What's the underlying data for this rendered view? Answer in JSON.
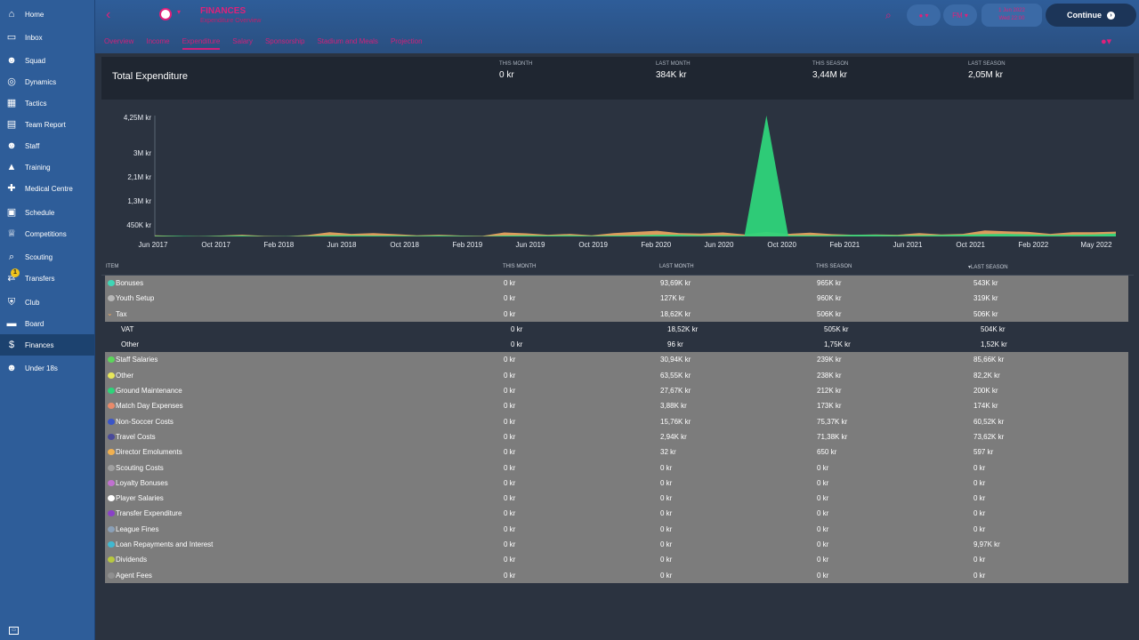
{
  "nav": [
    {
      "label": "Home",
      "icon": "home-icon"
    },
    {
      "label": "Inbox",
      "icon": "inbox-icon"
    },
    {
      "label": "Squad",
      "icon": "squad-icon"
    },
    {
      "label": "Dynamics",
      "icon": "dynamics-icon"
    },
    {
      "label": "Tactics",
      "icon": "tactics-icon"
    },
    {
      "label": "Team Report",
      "icon": "team-report-icon"
    },
    {
      "label": "Staff",
      "icon": "staff-icon"
    },
    {
      "label": "Training",
      "icon": "training-icon"
    },
    {
      "label": "Medical Centre",
      "icon": "medical-icon"
    },
    {
      "label": "Schedule",
      "icon": "schedule-icon"
    },
    {
      "label": "Competitions",
      "icon": "trophy-icon"
    },
    {
      "label": "Scouting",
      "icon": "scouting-icon"
    },
    {
      "label": "Transfers",
      "icon": "transfers-icon",
      "badge": "1"
    },
    {
      "label": "Club",
      "icon": "club-icon"
    },
    {
      "label": "Board",
      "icon": "board-icon"
    },
    {
      "label": "Finances",
      "icon": "finances-icon",
      "active": true
    },
    {
      "label": "Under 18s",
      "icon": "under18s-icon"
    }
  ],
  "header": {
    "back_icon": "chevron-left-icon",
    "title": "FINANCES",
    "subtitle": "Expenditure Overview",
    "tabs": [
      "Overview",
      "Income",
      "Expenditure",
      "Salary",
      "Sponsorship",
      "Stadium and Meals",
      "Projection"
    ],
    "active_tab": "Expenditure",
    "pill_left": "●",
    "pill_right": "FM",
    "date_line1": "1 Jun 2022",
    "date_line2": "Wed 22:00",
    "continue_label": "Continue",
    "accent": "#e0207a"
  },
  "summary": {
    "title": "Total Expenditure",
    "cols": [
      {
        "label": "THIS MONTH",
        "value": "0 kr"
      },
      {
        "label": "LAST MONTH",
        "value": "384K kr"
      },
      {
        "label": "THIS SEASON",
        "value": "3,44M kr"
      },
      {
        "label": "LAST SEASON",
        "value": "2,05M kr"
      }
    ]
  },
  "chart_data": {
    "type": "area",
    "y_ticks": [
      "4,25M kr",
      "3M kr",
      "2,1M kr",
      "1,3M kr",
      "450K kr"
    ],
    "x_ticks": [
      "Jun 2017",
      "Oct 2017",
      "Feb 2018",
      "Jun 2018",
      "Oct 2018",
      "Feb 2019",
      "Jun 2019",
      "Oct 2019",
      "Feb 2020",
      "Jun 2020",
      "Oct 2020",
      "Feb 2021",
      "Jun 2021",
      "Oct 2021",
      "Feb 2022",
      "May 2022"
    ],
    "ylim": [
      0,
      4250000
    ],
    "series": [
      {
        "color": "#f0a860",
        "values": [
          40,
          20,
          10,
          30,
          60,
          20,
          10,
          50,
          150,
          90,
          120,
          80,
          40,
          60,
          30,
          20,
          140,
          110,
          60,
          90,
          40,
          120,
          160,
          200,
          120,
          100,
          140,
          70,
          160,
          90,
          130,
          80,
          60,
          70,
          60,
          120,
          70,
          90,
          210,
          180,
          160,
          90,
          150,
          150,
          170
        ]
      },
      {
        "color": "#2ed47a",
        "peak_index": 28,
        "peak": 4250000,
        "values": [
          20,
          20,
          10,
          20,
          30,
          10,
          10,
          20,
          40,
          40,
          30,
          30,
          20,
          30,
          20,
          10,
          30,
          40,
          30,
          40,
          20,
          30,
          40,
          60,
          60,
          40,
          40,
          30,
          4250000,
          40,
          40,
          40,
          60,
          60,
          40,
          40,
          50,
          60,
          80,
          90,
          70,
          50,
          60,
          70,
          100
        ]
      }
    ],
    "grid": false,
    "legend": "none"
  },
  "table": {
    "headers": [
      "ITEM",
      "THIS MONTH",
      "LAST MONTH",
      "THIS SEASON",
      "LAST SEASON"
    ],
    "sort_column": "LAST SEASON",
    "rows": [
      {
        "item": "Bonuses",
        "color": "#3fd6b6",
        "m": "0 kr",
        "lm": "93,69K kr",
        "ts": "965K kr",
        "ls": "543K kr"
      },
      {
        "item": "Youth Setup",
        "color": "#b7b7b7",
        "m": "0 kr",
        "lm": "127K kr",
        "ts": "960K kr",
        "ls": "319K kr"
      },
      {
        "item": "Tax",
        "expand": "v",
        "color": "#f0a860",
        "m": "0 kr",
        "lm": "18,62K kr",
        "ts": "506K kr",
        "ls": "506K kr"
      },
      {
        "item": "VAT",
        "sub": true,
        "m": "0 kr",
        "lm": "18,52K kr",
        "ts": "505K kr",
        "ls": "504K kr"
      },
      {
        "item": "Other",
        "sub": true,
        "m": "0 kr",
        "lm": "96 kr",
        "ts": "1,75K kr",
        "ls": "1,52K kr"
      },
      {
        "item": "Staff Salaries",
        "color": "#5bd65b",
        "m": "0 kr",
        "lm": "30,94K kr",
        "ts": "239K kr",
        "ls": "85,66K kr"
      },
      {
        "item": "Other",
        "color": "#e6e65a",
        "m": "0 kr",
        "lm": "63,55K kr",
        "ts": "238K kr",
        "ls": "82,2K kr"
      },
      {
        "item": "Ground Maintenance",
        "color": "#2ed47a",
        "m": "0 kr",
        "lm": "27,67K kr",
        "ts": "212K kr",
        "ls": "200K kr"
      },
      {
        "item": "Match Day Expenses",
        "color": "#e88a6a",
        "m": "0 kr",
        "lm": "3,88K kr",
        "ts": "173K kr",
        "ls": "174K kr"
      },
      {
        "item": "Non-Soccer Costs",
        "color": "#3a55c8",
        "m": "0 kr",
        "lm": "15,76K kr",
        "ts": "75,37K kr",
        "ls": "60,52K kr"
      },
      {
        "item": "Travel Costs",
        "color": "#4a4a9a",
        "m": "0 kr",
        "lm": "2,94K kr",
        "ts": "71,38K kr",
        "ls": "73,62K kr"
      },
      {
        "item": "Director Emoluments",
        "color": "#f0b050",
        "m": "0 kr",
        "lm": "32 kr",
        "ts": "650 kr",
        "ls": "597 kr"
      },
      {
        "item": "Scouting Costs",
        "color": "#a0a0a0",
        "m": "0 kr",
        "lm": "0 kr",
        "ts": "0 kr",
        "ls": "0 kr"
      },
      {
        "item": "Loyalty Bonuses",
        "color": "#c070d0",
        "m": "0 kr",
        "lm": "0 kr",
        "ts": "0 kr",
        "ls": "0 kr"
      },
      {
        "item": "Player Salaries",
        "color": "#ffffff",
        "m": "0 kr",
        "lm": "0 kr",
        "ts": "0 kr",
        "ls": "0 kr"
      },
      {
        "item": "Transfer Expenditure",
        "color": "#8a40c8",
        "m": "0 kr",
        "lm": "0 kr",
        "ts": "0 kr",
        "ls": "0 kr"
      },
      {
        "item": "League Fines",
        "color": "#8aa0b8",
        "m": "0 kr",
        "lm": "0 kr",
        "ts": "0 kr",
        "ls": "0 kr"
      },
      {
        "item": "Loan Repayments and Interest",
        "color": "#40b8d0",
        "m": "0 kr",
        "lm": "0 kr",
        "ts": "0 kr",
        "ls": "9,97K kr"
      },
      {
        "item": "Dividends",
        "color": "#b8c840",
        "m": "0 kr",
        "lm": "0 kr",
        "ts": "0 kr",
        "ls": "0 kr"
      },
      {
        "item": "Agent Fees",
        "color": "#909090",
        "m": "0 kr",
        "lm": "0 kr",
        "ts": "0 kr",
        "ls": "0 kr"
      }
    ]
  }
}
